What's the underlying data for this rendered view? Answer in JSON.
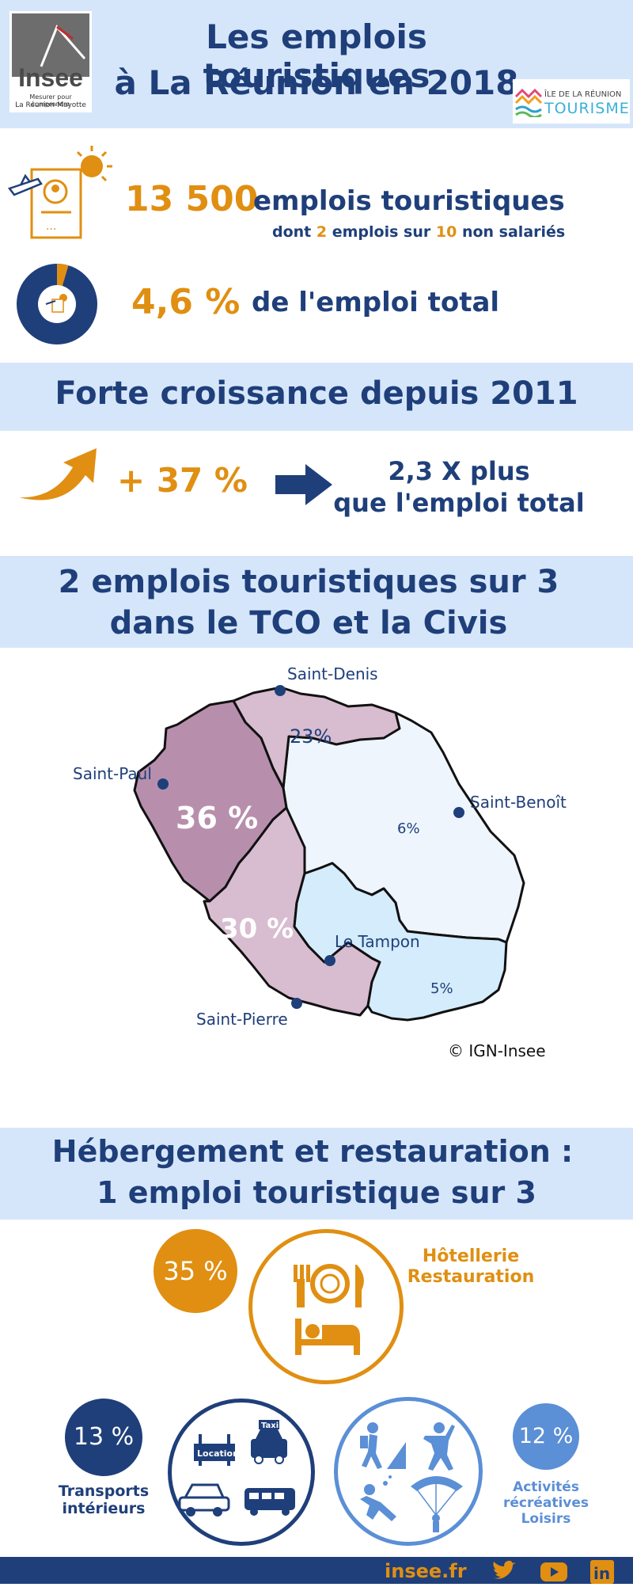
{
  "header": {
    "title_line1": "Les emplois touristiques",
    "title_line2": "à La Réunion en 2018",
    "insee_logo_text": "Insee",
    "insee_tagline1": "Mesurer pour comprendre",
    "insee_tagline2": "La Réunion-Mayotte",
    "tourism_logo_line1": "ÎLE DE LA RÉUNION",
    "tourism_logo_line2": "TOURISME"
  },
  "stats": {
    "jobs_value": "13 500",
    "jobs_label": "emplois touristiques",
    "jobs_sub_prefix": "dont",
    "jobs_sub_num1": "2",
    "jobs_sub_middle": "emplois sur",
    "jobs_sub_num2": "10",
    "jobs_sub_suffix": "non salariés",
    "share_value": "4,6 %",
    "share_label": "de l'emploi total",
    "share_fraction": 0.046
  },
  "growth": {
    "heading": "Forte croissance depuis 2011",
    "value": "+ 37 %",
    "compare_line1": "2,3 X plus",
    "compare_line2": "que l'emploi total"
  },
  "map": {
    "heading_line1": "2 emplois touristiques sur 3",
    "heading_line2": "dans le TCO et la Civis",
    "cities": {
      "saint_denis": "Saint-Denis",
      "saint_paul": "Saint-Paul",
      "saint_benoit": "Saint-Benoît",
      "le_tampon": "Le Tampon",
      "saint_pierre": "Saint-Pierre"
    },
    "regions": {
      "west": "36 %",
      "north": "23%",
      "east": "6%",
      "south_west": "30 %",
      "south_east": "5%"
    },
    "credit": "© IGN-Insee"
  },
  "sectors": {
    "heading_line1": "Hébergement et restauration :",
    "heading_line2": "1 emploi touristique sur 3",
    "hotel": {
      "percent": "35 %",
      "label_line1": "Hôtellerie",
      "label_line2": "Restauration"
    },
    "transport": {
      "percent": "13 %",
      "label_line1": "Transports",
      "label_line2": "intérieurs",
      "sign_location": "Location",
      "sign_taxi": "Taxi"
    },
    "leisure": {
      "percent": "12 %",
      "label_line1": "Activités",
      "label_line2": "récréatives",
      "label_line3": "Loisirs"
    }
  },
  "footer": {
    "site": "insee.fr",
    "icons": [
      "twitter-icon",
      "youtube-icon",
      "linkedin-icon"
    ]
  },
  "colors": {
    "navy": "#1f3f7a",
    "orange": "#e08f12",
    "light_blue_band": "#d6e6fa",
    "map_dark": "#b78fad",
    "map_mid": "#d8bcd0",
    "map_pale_blue": "#eef5fd",
    "map_light_blue": "#d4ecfb",
    "leisure_blue": "#5b8fd6"
  }
}
